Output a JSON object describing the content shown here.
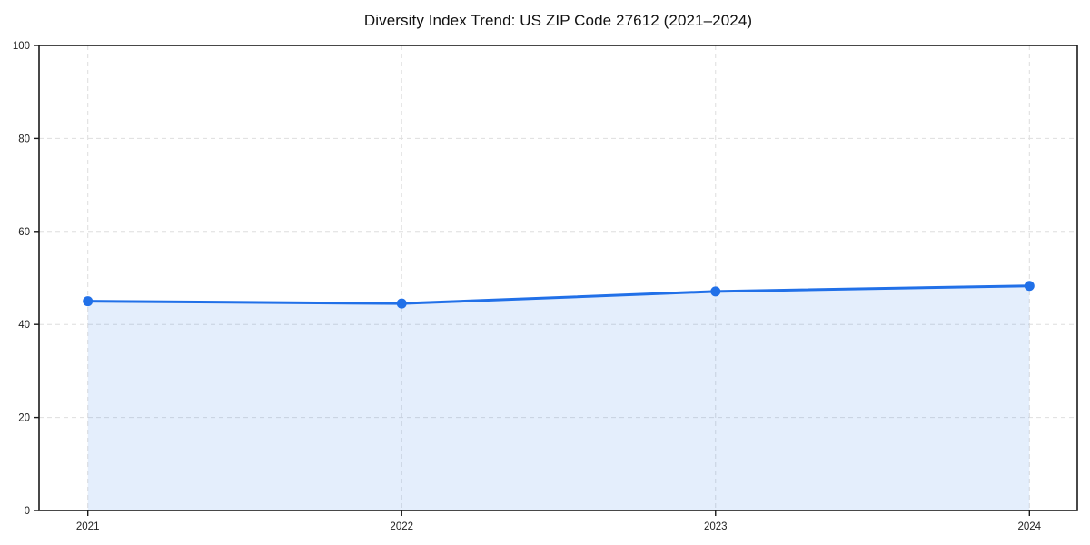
{
  "chart_data": {
    "type": "area",
    "title": "Diversity Index Trend: US ZIP Code 27612 (2021–2024)",
    "x": [
      "2021",
      "2022",
      "2023",
      "2024"
    ],
    "series": [
      {
        "name": "Diversity Index",
        "values": [
          45.0,
          44.5,
          47.1,
          48.3
        ]
      }
    ],
    "xlabel": "",
    "ylabel": "",
    "ylim": [
      0,
      100
    ],
    "yticks": [
      0,
      20,
      40,
      60,
      80,
      100
    ],
    "grid": true,
    "legend": false,
    "colors": {
      "line": "#2170e8",
      "marker": "#2170e8",
      "fill": "rgba(33,112,232,0.12)",
      "grid": "#dedede",
      "axis": "#1a1a1a",
      "tick_label": "#222222",
      "title": "#111111"
    }
  }
}
